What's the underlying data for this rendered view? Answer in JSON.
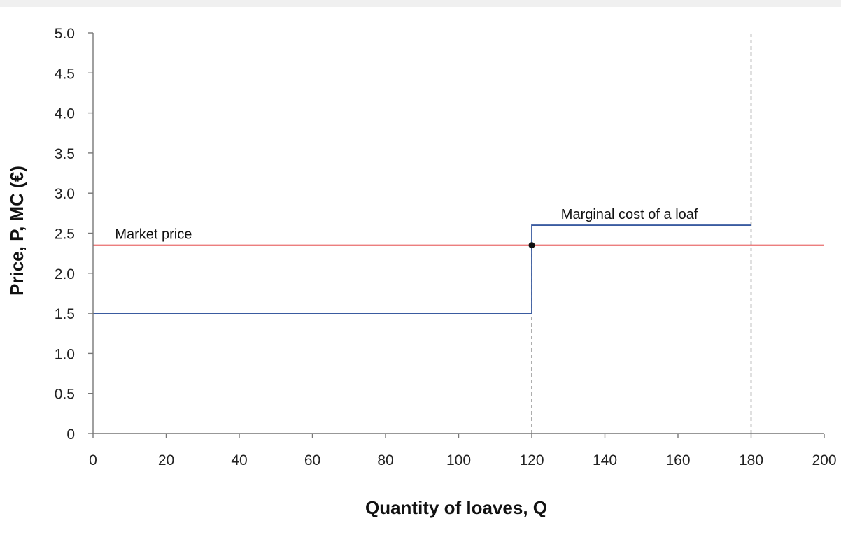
{
  "chart_data": {
    "type": "line",
    "xlabel": "Quantity of loaves, Q",
    "ylabel": "Price, P, MC (€)",
    "xlim": [
      0,
      200
    ],
    "ylim": [
      0,
      5.0
    ],
    "x_ticks": [
      0,
      20,
      40,
      60,
      80,
      100,
      120,
      140,
      160,
      180,
      200
    ],
    "x_tick_labels": [
      "0",
      "20",
      "40",
      "60",
      "80",
      "100",
      "120",
      "140",
      "160",
      "180",
      "200"
    ],
    "y_ticks": [
      0,
      0.5,
      1.0,
      1.5,
      2.0,
      2.5,
      3.0,
      3.5,
      4.0,
      4.5,
      5.0
    ],
    "y_tick_labels": [
      "0",
      "0.5",
      "1.0",
      "1.5",
      "2.0",
      "2.5",
      "3.0",
      "3.5",
      "4.0",
      "4.5",
      "5.0"
    ],
    "grid": false,
    "series": [
      {
        "id": "marginal-cost",
        "color": "#3a5ba0",
        "points": [
          [
            0,
            1.5
          ],
          [
            120,
            1.5
          ],
          [
            120,
            2.6
          ],
          [
            180,
            2.6
          ]
        ]
      },
      {
        "id": "market-price",
        "color": "#e03030",
        "points": [
          [
            0,
            2.35
          ],
          [
            200,
            2.35
          ]
        ]
      }
    ],
    "reference_lines": [
      {
        "axis": "x",
        "value": 120,
        "from": 0,
        "to": 2.35,
        "style": "dashed",
        "color": "#999999"
      },
      {
        "axis": "x",
        "value": 180,
        "from": 0,
        "to": 5.0,
        "style": "dashed",
        "color": "#999999"
      }
    ],
    "points": [
      {
        "x": 120,
        "y": 2.35,
        "color": "#111111"
      }
    ],
    "annotations": [
      {
        "id": "market-price-label",
        "text": "Market price",
        "x": 6,
        "y": 2.5
      },
      {
        "id": "mc-label",
        "text": "Marginal cost of a loaf",
        "x": 128,
        "y": 2.75
      }
    ]
  }
}
